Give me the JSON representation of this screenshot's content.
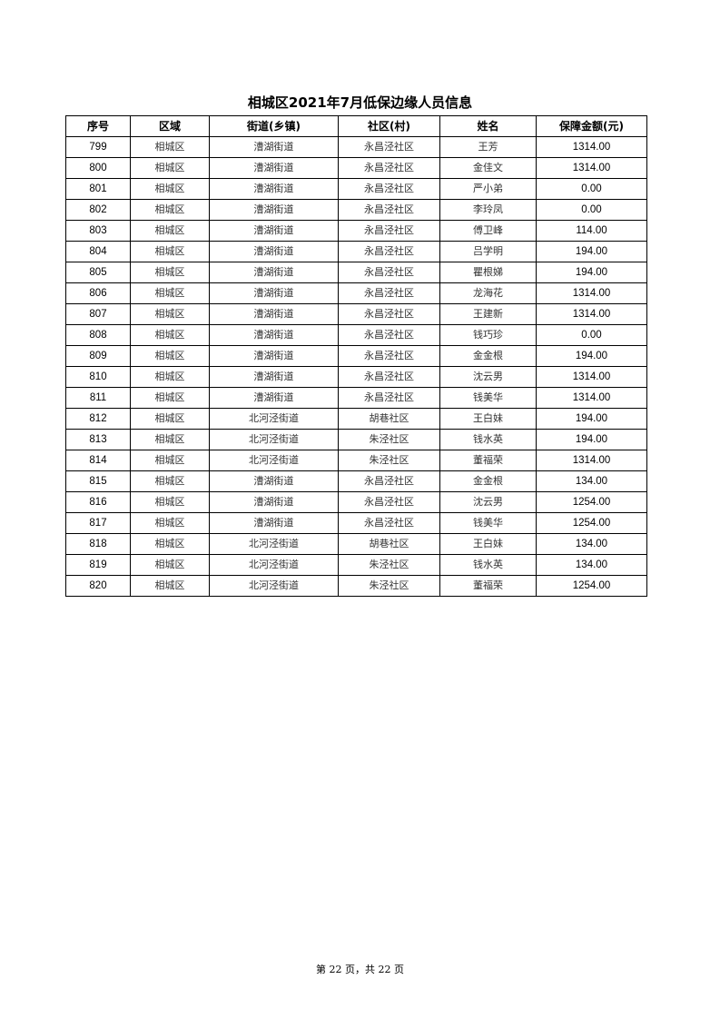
{
  "title": "相城区2021年7月低保边缘人员信息",
  "columns": [
    "序号",
    "区域",
    "街道(乡镇)",
    "社区(村)",
    "姓名",
    "保障金额(元)"
  ],
  "rows": [
    [
      "799",
      "相城区",
      "漕湖街道",
      "永昌泾社区",
      "王芳",
      "1314.00"
    ],
    [
      "800",
      "相城区",
      "漕湖街道",
      "永昌泾社区",
      "金佳文",
      "1314.00"
    ],
    [
      "801",
      "相城区",
      "漕湖街道",
      "永昌泾社区",
      "严小弟",
      "0.00"
    ],
    [
      "802",
      "相城区",
      "漕湖街道",
      "永昌泾社区",
      "李玲凤",
      "0.00"
    ],
    [
      "803",
      "相城区",
      "漕湖街道",
      "永昌泾社区",
      "傅卫峰",
      "114.00"
    ],
    [
      "804",
      "相城区",
      "漕湖街道",
      "永昌泾社区",
      "吕学明",
      "194.00"
    ],
    [
      "805",
      "相城区",
      "漕湖街道",
      "永昌泾社区",
      "瞿根娣",
      "194.00"
    ],
    [
      "806",
      "相城区",
      "漕湖街道",
      "永昌泾社区",
      "龙海花",
      "1314.00"
    ],
    [
      "807",
      "相城区",
      "漕湖街道",
      "永昌泾社区",
      "王建新",
      "1314.00"
    ],
    [
      "808",
      "相城区",
      "漕湖街道",
      "永昌泾社区",
      "钱巧珍",
      "0.00"
    ],
    [
      "809",
      "相城区",
      "漕湖街道",
      "永昌泾社区",
      "金金根",
      "194.00"
    ],
    [
      "810",
      "相城区",
      "漕湖街道",
      "永昌泾社区",
      "沈云男",
      "1314.00"
    ],
    [
      "811",
      "相城区",
      "漕湖街道",
      "永昌泾社区",
      "钱美华",
      "1314.00"
    ],
    [
      "812",
      "相城区",
      "北河泾街道",
      "胡巷社区",
      "王白妹",
      "194.00"
    ],
    [
      "813",
      "相城区",
      "北河泾街道",
      "朱泾社区",
      "钱水英",
      "194.00"
    ],
    [
      "814",
      "相城区",
      "北河泾街道",
      "朱泾社区",
      "董福荣",
      "1314.00"
    ],
    [
      "815",
      "相城区",
      "漕湖街道",
      "永昌泾社区",
      "金金根",
      "134.00"
    ],
    [
      "816",
      "相城区",
      "漕湖街道",
      "永昌泾社区",
      "沈云男",
      "1254.00"
    ],
    [
      "817",
      "相城区",
      "漕湖街道",
      "永昌泾社区",
      "钱美华",
      "1254.00"
    ],
    [
      "818",
      "相城区",
      "北河泾街道",
      "胡巷社区",
      "王白妹",
      "134.00"
    ],
    [
      "819",
      "相城区",
      "北河泾街道",
      "朱泾社区",
      "钱水英",
      "134.00"
    ],
    [
      "820",
      "相城区",
      "北河泾街道",
      "朱泾社区",
      "董福荣",
      "1254.00"
    ]
  ],
  "footer": "第 22 页，共 22 页"
}
